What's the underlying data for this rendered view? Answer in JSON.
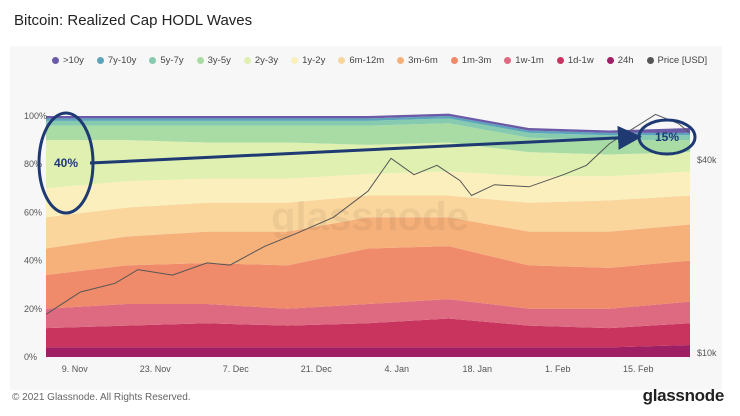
{
  "title": "Bitcoin: Realized Cap HODL Waves",
  "footer": "© 2021 Glassnode. All Rights Reserved.",
  "brand": "glassnode",
  "watermark": "glassnode",
  "chart_data": {
    "type": "area",
    "stacked": true,
    "x_ticks": [
      "9. Nov",
      "23. Nov",
      "7. Dec",
      "21. Dec",
      "4. Jan",
      "18. Jan",
      "1. Feb",
      "15. Feb"
    ],
    "y_left_ticks": [
      "0%",
      "20%",
      "40%",
      "60%",
      "80%",
      "100%"
    ],
    "y_right_ticks": [
      "$10k",
      "$40k"
    ],
    "ylim": [
      0,
      100
    ],
    "y2_scale": "log",
    "legend_position": "top",
    "grid": false,
    "x": [
      0,
      14,
      28,
      42,
      56,
      70,
      84,
      98,
      112
    ],
    "series": [
      {
        "name": "24h",
        "color": "#9e1f63",
        "values": [
          4,
          4,
          4,
          4,
          4,
          4,
          4,
          4,
          5
        ]
      },
      {
        "name": "1d-1w",
        "color": "#c8345e",
        "values": [
          8,
          9,
          10,
          9,
          10,
          12,
          9,
          8,
          9
        ]
      },
      {
        "name": "1w-1m",
        "color": "#dd6a80",
        "values": [
          8,
          9,
          8,
          7,
          8,
          8,
          7,
          8,
          9
        ]
      },
      {
        "name": "1m-3m",
        "color": "#ef8a6a",
        "values": [
          14,
          16,
          17,
          18,
          23,
          22,
          18,
          17,
          17
        ]
      },
      {
        "name": "3m-6m",
        "color": "#f6b07a",
        "values": [
          11,
          12,
          13,
          14,
          13,
          12,
          14,
          15,
          15
        ]
      },
      {
        "name": "6m-12m",
        "color": "#fad59c",
        "values": [
          13,
          12,
          12,
          12,
          9,
          9,
          12,
          13,
          12
        ]
      },
      {
        "name": "1y-2y",
        "color": "#fbf0bd",
        "values": [
          12,
          11,
          10,
          10,
          9,
          10,
          11,
          10,
          10
        ]
      },
      {
        "name": "2y-3y",
        "color": "#dff0b1",
        "values": [
          20,
          17,
          15,
          15,
          12,
          12,
          10,
          9,
          8
        ]
      },
      {
        "name": "3y-5y",
        "color": "#a9dca5",
        "values": [
          6,
          6,
          7,
          7,
          8,
          8,
          6,
          6,
          5
        ]
      },
      {
        "name": "5y-7y",
        "color": "#86cbb0",
        "values": [
          2,
          2,
          2,
          2,
          2,
          2,
          2,
          2,
          2
        ]
      },
      {
        "name": "7y-10y",
        "color": "#5ca4bb",
        "values": [
          1,
          1,
          1,
          1,
          1,
          1,
          1,
          1,
          1
        ]
      },
      {
        "name": ">10y",
        "color": "#6a5aa8",
        "values": [
          1,
          1,
          1,
          1,
          1,
          1,
          1,
          1,
          2
        ]
      }
    ],
    "price_series": {
      "name": "Price [USD]",
      "color": "#555555",
      "x": [
        0,
        6,
        12,
        16,
        22,
        28,
        32,
        38,
        44,
        50,
        56,
        60,
        64,
        68,
        72,
        74,
        78,
        84,
        90,
        94,
        98,
        102,
        106,
        110,
        112
      ],
      "values": [
        13200,
        15500,
        16500,
        18200,
        17500,
        19100,
        18800,
        21500,
        23800,
        26500,
        32000,
        40500,
        36000,
        38500,
        34500,
        31000,
        33500,
        33000,
        36000,
        38500,
        45000,
        50000,
        55500,
        52000,
        48500
      ]
    },
    "annotations": [
      {
        "text": "40%",
        "x": 2,
        "y": 81
      },
      {
        "text": "15%",
        "x": 109,
        "y": 92
      }
    ]
  },
  "legend": [
    {
      "label": ">10y",
      "color": "#6a5aa8"
    },
    {
      "label": "7y-10y",
      "color": "#5ca4bb"
    },
    {
      "label": "5y-7y",
      "color": "#86cbb0"
    },
    {
      "label": "3y-5y",
      "color": "#a9dca5"
    },
    {
      "label": "2y-3y",
      "color": "#dff0b1"
    },
    {
      "label": "1y-2y",
      "color": "#fbf0bd"
    },
    {
      "label": "6m-12m",
      "color": "#fad59c"
    },
    {
      "label": "3m-6m",
      "color": "#f6b07a"
    },
    {
      "label": "1m-3m",
      "color": "#ef8a6a"
    },
    {
      "label": "1w-1m",
      "color": "#dd6a80"
    },
    {
      "label": "1d-1w",
      "color": "#c8345e"
    },
    {
      "label": "24h",
      "color": "#9e1f63"
    },
    {
      "label": "Price [USD]",
      "color": "#555555"
    }
  ]
}
